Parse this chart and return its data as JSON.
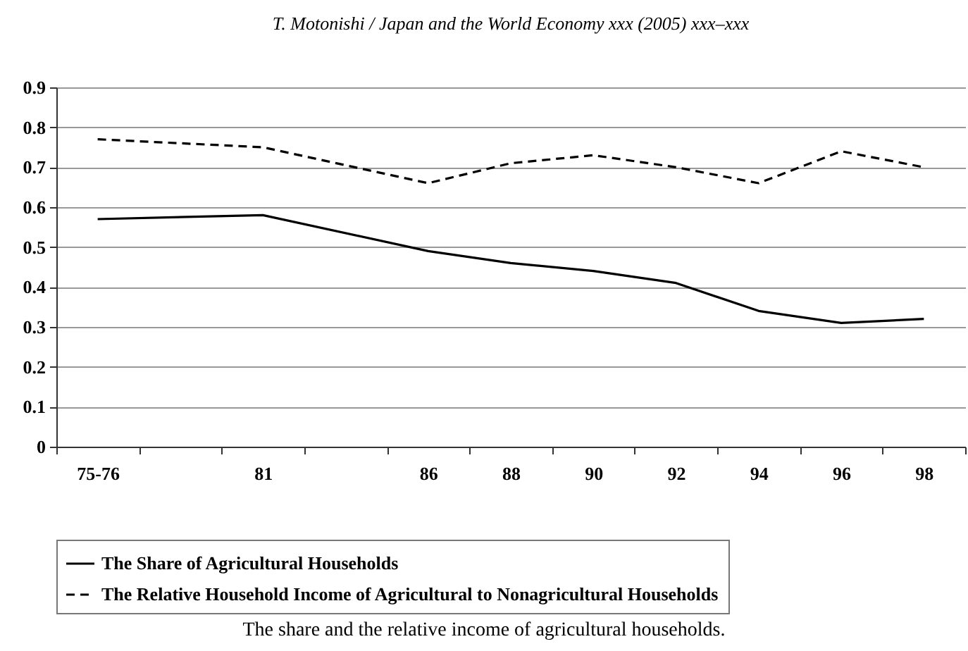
{
  "chart_data": {
    "type": "line",
    "title": "T. Motonishi / Japan and the World Economy xxx (2005) xxx–xxx",
    "annotations": [
      "The share and the relative income of agricultural households."
    ],
    "categories": [
      "75-76",
      null,
      "81",
      null,
      "86",
      "88",
      "90",
      "92",
      "94",
      "96",
      "98"
    ],
    "series": [
      {
        "name": "The Share of Agricultural Households",
        "color": "#000000",
        "line_style": "solid",
        "values": [
          0.57,
          null,
          0.58,
          null,
          0.49,
          0.46,
          0.44,
          0.41,
          0.34,
          0.31,
          0.32
        ]
      },
      {
        "name": "The Relative Household Income of Agricultural to Nonagricultural Households",
        "color": "#000000",
        "line_style": "dashed",
        "values": [
          0.77,
          null,
          0.75,
          null,
          0.66,
          0.71,
          0.73,
          0.7,
          0.66,
          0.74,
          0.7
        ]
      }
    ],
    "ylim": [
      0,
      0.9
    ],
    "yticks": [
      0,
      0.1,
      0.2,
      0.3,
      0.4,
      0.5,
      0.6,
      0.7,
      0.8,
      0.9
    ],
    "grid": "y",
    "legend": "bottom",
    "marker": "none"
  }
}
